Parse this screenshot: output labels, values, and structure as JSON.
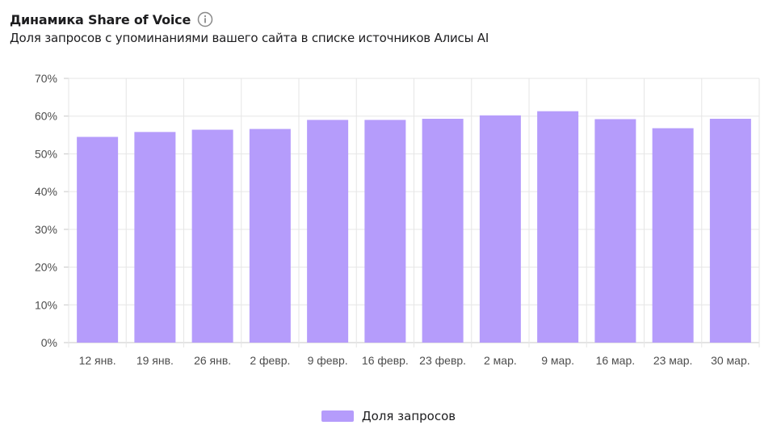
{
  "header": {
    "title": "Динамика Share of Voice",
    "subtitle": "Доля запросов с упоминаниями вашего сайта в списке источников Алисы AI",
    "info_icon": "info-icon"
  },
  "colors": {
    "bar": "#b59cfb",
    "grid": "#e6e6e6",
    "axis": "#c8c8c8",
    "tick_text": "#4d4d4d"
  },
  "chart_data": {
    "type": "bar",
    "categories": [
      "12 янв.",
      "19 янв.",
      "26 янв.",
      "2 февр.",
      "9 февр.",
      "16 февр.",
      "23 февр.",
      "2 мар.",
      "9 мар.",
      "16 мар.",
      "23 мар.",
      "30 мар."
    ],
    "series": [
      {
        "name": "Доля запросов",
        "values": [
          54.5,
          55.8,
          56.4,
          56.6,
          59.0,
          59.0,
          59.3,
          60.2,
          61.3,
          59.2,
          56.8,
          59.3
        ]
      }
    ],
    "yticks": [
      "0%",
      "10%",
      "20%",
      "30%",
      "40%",
      "50%",
      "60%",
      "70%"
    ],
    "ylim": [
      0,
      70
    ],
    "grid": true,
    "legend_position": "bottom-center"
  },
  "legend": {
    "label": "Доля запросов"
  }
}
